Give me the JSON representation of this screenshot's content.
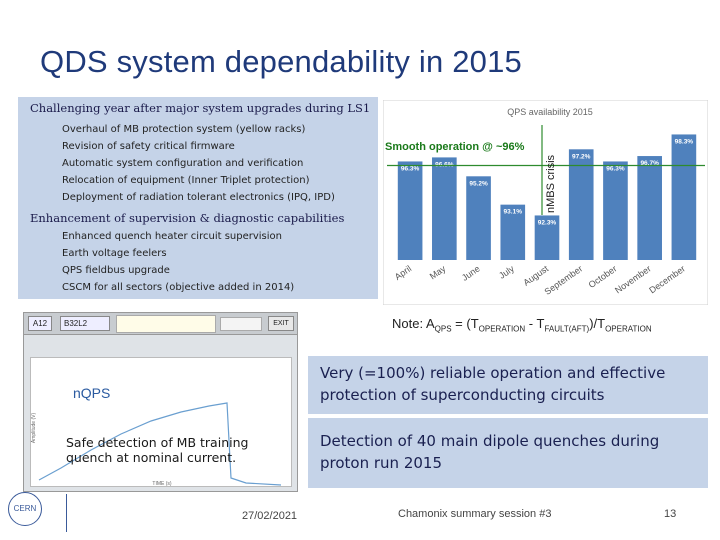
{
  "slide_title": "QDS system dependability in 2015",
  "left_box": {
    "heading1": "Challenging year after major system upgrades during LS1",
    "items1": [
      "Overhaul of MB protection system (yellow racks)",
      "Revision of safety critical firmware",
      "Automatic system configuration and verification",
      "Relocation of equipment (Inner Triplet protection)",
      "Deployment of radiation tolerant electronics (IPQ, IPD)"
    ],
    "heading2": "Enhancement of supervision & diagnostic capabilities",
    "items2": [
      "Enhanced quench heater circuit supervision",
      "Earth voltage feelers",
      "QPS fieldbus upgrade",
      "CSCM for all sectors (objective added in 2014)"
    ]
  },
  "chart_data": {
    "type": "bar",
    "title": "QPS availability 2015",
    "categories": [
      "April",
      "May",
      "June",
      "July",
      "August",
      "September",
      "October",
      "November",
      "December"
    ],
    "values": [
      96.3,
      96.6,
      95.2,
      93.1,
      92.3,
      97.2,
      96.3,
      96.7,
      98.3
    ],
    "value_labels": [
      "96.3%",
      "96.6%",
      "95.2%",
      "93.1%",
      "92.3%",
      "97.2%",
      "96.3%",
      "96.7%",
      "98.3%"
    ],
    "ylim": [
      89,
      99
    ],
    "reference_line": 96,
    "annotations": [
      "Smooth operation @ ~96%",
      "nMBS crisis"
    ],
    "colors": {
      "bar": "#4f81bd",
      "line": "#2e8b2e",
      "annotation": "#1a7a1a"
    }
  },
  "note": {
    "prefix": "Note: A",
    "sub1": "QPS",
    "mid1": " = (T",
    "sub2": "OPERATION",
    "mid2": " - T",
    "sub3": "FAULT(AFT)",
    "mid3": ")/T",
    "sub4": "OPERATION"
  },
  "box_top_text": "Very (=100%) reliable operation and effective protection of superconducting circuits",
  "box_bottom_text": "Detection of 40 main dipole quenches during proton run 2015",
  "screenshot": {
    "tab1": "A12",
    "tab2": "B32L2",
    "exit_label": "EXIT",
    "logo": "nQPS",
    "xlabel": "TIME (s)",
    "ylabel": "Amplitude (V)",
    "caption": "Safe detection of MB training quench at nominal current."
  },
  "footer": {
    "date": "27/02/2021",
    "session": "Chamonix summary session #3",
    "page": "13",
    "org_logo": "CERN"
  }
}
